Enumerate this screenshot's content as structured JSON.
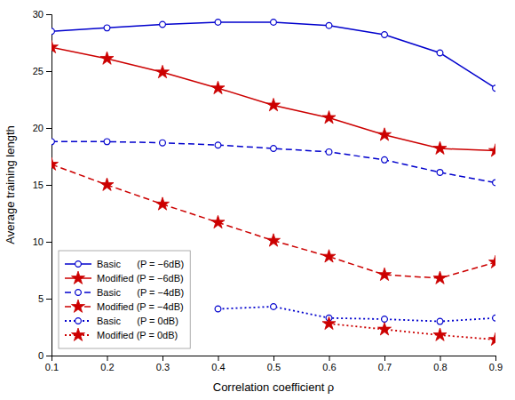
{
  "chart_data": {
    "type": "line",
    "x_label": "Correlation coefficient ρ",
    "y_label": "Average training length",
    "x": [
      0.1,
      0.2,
      0.3,
      0.4,
      0.5,
      0.6,
      0.7,
      0.8,
      0.9
    ],
    "series": [
      {
        "name": "Basic      (P = −6dB)",
        "color": "#0000cd",
        "marker": "circle",
        "line_style": "solid",
        "values": [
          28.5,
          28.8,
          29.1,
          29.3,
          29.3,
          29.0,
          28.2,
          26.6,
          23.5
        ]
      },
      {
        "name": "Modified (P = −6dB)",
        "color": "#cc0000",
        "marker": "star",
        "line_style": "solid",
        "values": [
          27.1,
          26.1,
          24.9,
          23.5,
          22.0,
          20.9,
          19.4,
          18.2,
          18.0
        ]
      },
      {
        "name": "Basic      (P = −4dB)",
        "color": "#0000cd",
        "marker": "circle",
        "line_style": "dashed",
        "values": [
          18.8,
          18.8,
          18.7,
          18.5,
          18.2,
          17.9,
          17.2,
          16.1,
          15.2
        ]
      },
      {
        "name": "Modified (P = −4dB)",
        "color": "#cc0000",
        "marker": "star",
        "line_style": "dashed",
        "values": [
          16.8,
          15.0,
          13.3,
          11.7,
          10.1,
          8.7,
          7.1,
          6.8,
          8.2
        ]
      },
      {
        "name": "Basic      (P = 0dB)",
        "color": "#0000cd",
        "marker": "circle",
        "line_style": "dotted",
        "values": [
          null,
          null,
          null,
          4.1,
          4.3,
          3.3,
          3.2,
          3.0,
          3.3
        ]
      },
      {
        "name": "Modified (P = 0dB)",
        "color": "#cc0000",
        "marker": "star",
        "line_style": "dotted",
        "values": [
          null,
          null,
          null,
          null,
          null,
          2.8,
          2.3,
          1.8,
          1.4
        ]
      }
    ],
    "xlim": [
      0.1,
      0.9
    ],
    "ylim": [
      0,
      30
    ],
    "xticks": [
      0.1,
      0.2,
      0.3,
      0.4,
      0.5,
      0.6,
      0.7,
      0.8,
      0.9
    ],
    "yticks": [
      0,
      5,
      10,
      15,
      20,
      25,
      30
    ],
    "grid": false,
    "legend": "lower left"
  }
}
